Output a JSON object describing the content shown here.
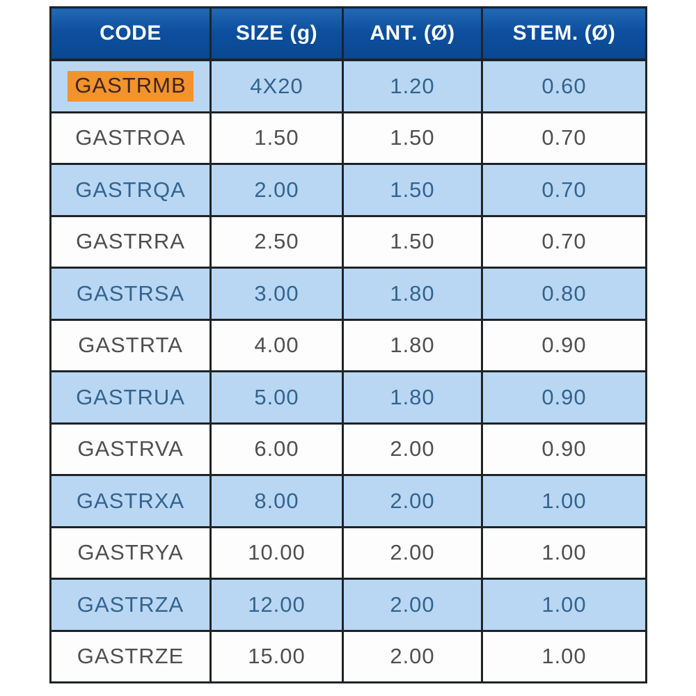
{
  "table": {
    "columns": [
      "CODE",
      "SIZE (g)",
      "ANT. (Ø)",
      "STEM. (Ø)"
    ],
    "column_keys": [
      "code",
      "size",
      "ant",
      "stem"
    ],
    "rows": [
      {
        "cells": [
          "GASTRMB",
          "4X20",
          "1.20",
          "0.60"
        ],
        "highlighted": true
      },
      {
        "cells": [
          "GASTROA",
          "1.50",
          "1.50",
          "0.70"
        ],
        "highlighted": false
      },
      {
        "cells": [
          "GASTRQA",
          "2.00",
          "1.50",
          "0.70"
        ],
        "highlighted": false
      },
      {
        "cells": [
          "GASTRRA",
          "2.50",
          "1.50",
          "0.70"
        ],
        "highlighted": false
      },
      {
        "cells": [
          "GASTRSA",
          "3.00",
          "1.80",
          "0.80"
        ],
        "highlighted": false
      },
      {
        "cells": [
          "GASTRTA",
          "4.00",
          "1.80",
          "0.90"
        ],
        "highlighted": false
      },
      {
        "cells": [
          "GASTRUA",
          "5.00",
          "1.80",
          "0.90"
        ],
        "highlighted": false
      },
      {
        "cells": [
          "GASTRVA",
          "6.00",
          "2.00",
          "0.90"
        ],
        "highlighted": false
      },
      {
        "cells": [
          "GASTRXA",
          "8.00",
          "2.00",
          "1.00"
        ],
        "highlighted": false
      },
      {
        "cells": [
          "GASTRYA",
          "10.00",
          "2.00",
          "1.00"
        ],
        "highlighted": false
      },
      {
        "cells": [
          "GASTRZA",
          "12.00",
          "2.00",
          "1.00"
        ],
        "highlighted": false
      },
      {
        "cells": [
          "GASTRZE",
          "15.00",
          "2.00",
          "1.00"
        ],
        "highlighted": false
      }
    ]
  },
  "colors": {
    "header_background": "#0d4f9e",
    "header_background_top": "#2269b4",
    "header_text": "#ffffff",
    "row_blue_background": "#b9d7f3",
    "row_white_background": "#fdfdfd",
    "row_blue_text": "#33638f",
    "row_white_text": "#4f4f4f",
    "grid_border": "#1f2326",
    "highlight_background": "#f2932d",
    "highlight_text": "#3f2516"
  },
  "chart_data": {
    "type": "table",
    "title": "",
    "columns": [
      "CODE",
      "SIZE (g)",
      "ANT. (Ø)",
      "STEM. (Ø)"
    ],
    "rows": [
      [
        "GASTRMB",
        "4X20",
        1.2,
        0.6
      ],
      [
        "GASTROA",
        1.5,
        1.5,
        0.7
      ],
      [
        "GASTRQA",
        2.0,
        1.5,
        0.7
      ],
      [
        "GASTRRA",
        2.5,
        1.5,
        0.7
      ],
      [
        "GASTRSA",
        3.0,
        1.8,
        0.8
      ],
      [
        "GASTRTA",
        4.0,
        1.8,
        0.9
      ],
      [
        "GASTRUA",
        5.0,
        1.8,
        0.9
      ],
      [
        "GASTRVA",
        6.0,
        2.0,
        0.9
      ],
      [
        "GASTRXA",
        8.0,
        2.0,
        1.0
      ],
      [
        "GASTRYA",
        10.0,
        2.0,
        1.0
      ],
      [
        "GASTRZA",
        12.0,
        2.0,
        1.0
      ],
      [
        "GASTRZE",
        15.0,
        2.0,
        1.0
      ]
    ]
  }
}
